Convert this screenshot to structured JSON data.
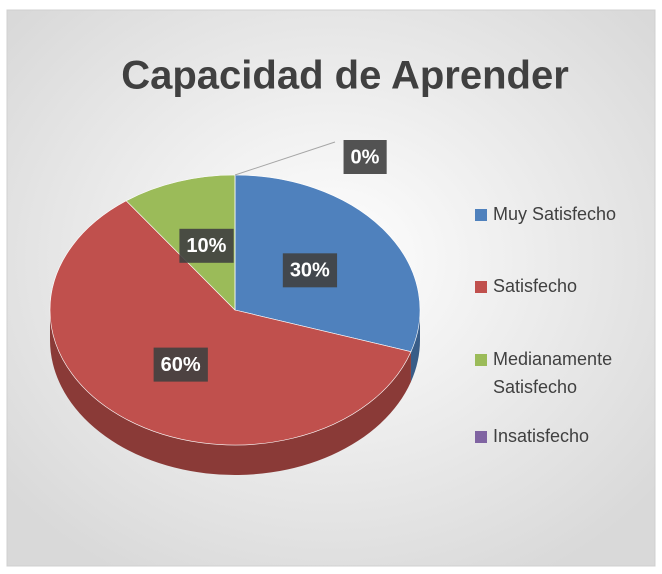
{
  "chart_data": {
    "type": "pie",
    "title": "Capacidad de Aprender",
    "categories": [
      "Muy Satisfecho",
      "Satisfecho",
      "Medianamente Satisfecho",
      "Insatisfecho"
    ],
    "values": [
      30,
      60,
      10,
      0
    ],
    "value_labels": [
      "30%",
      "60%",
      "10%",
      "0%"
    ],
    "colors": [
      "#4f81bd",
      "#c0504d",
      "#9bbb59",
      "#8064a2"
    ],
    "legend": "right"
  }
}
